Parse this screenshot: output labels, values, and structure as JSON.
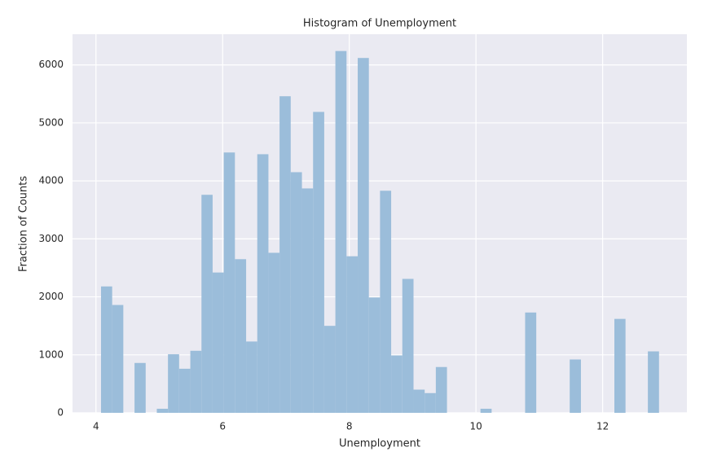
{
  "chart_data": {
    "type": "histogram",
    "title": "Histogram of Unemployment",
    "x_label": "Unemployment",
    "y_label": "Fraction of Counts",
    "bins": [
      4.08,
      4.256,
      4.432,
      4.609,
      4.785,
      4.961,
      5.137,
      5.313,
      5.49,
      5.666,
      5.842,
      6.018,
      6.194,
      6.371,
      6.547,
      6.723,
      6.899,
      7.075,
      7.252,
      7.428,
      7.604,
      7.78,
      7.956,
      8.133,
      8.309,
      8.485,
      8.661,
      8.837,
      9.014,
      9.19,
      9.366,
      9.542,
      9.718,
      9.895,
      10.071,
      10.247,
      10.423,
      10.599,
      10.776,
      10.952,
      11.128,
      11.304,
      11.48,
      11.657,
      11.833,
      12.009,
      12.185,
      12.361,
      12.538,
      12.714,
      12.89
    ],
    "values": [
      2180,
      1860,
      0,
      860,
      0,
      70,
      1010,
      760,
      1070,
      3760,
      2420,
      4490,
      2650,
      1230,
      4460,
      2760,
      5460,
      4150,
      3870,
      5190,
      1500,
      6240,
      2700,
      6120,
      1990,
      3830,
      990,
      2310,
      400,
      340,
      790,
      0,
      0,
      0,
      70,
      0,
      0,
      0,
      1730,
      0,
      0,
      0,
      920,
      0,
      0,
      0,
      1620,
      0,
      0,
      1060
    ],
    "color": "#9bbdda",
    "xlim": [
      3.63,
      13.33
    ],
    "xticks": [
      4,
      6,
      8,
      10,
      12
    ],
    "ylim": [
      0,
      6530
    ],
    "yticks": [
      0,
      1000,
      2000,
      3000,
      4000,
      5000,
      6000
    ],
    "grid": true
  }
}
